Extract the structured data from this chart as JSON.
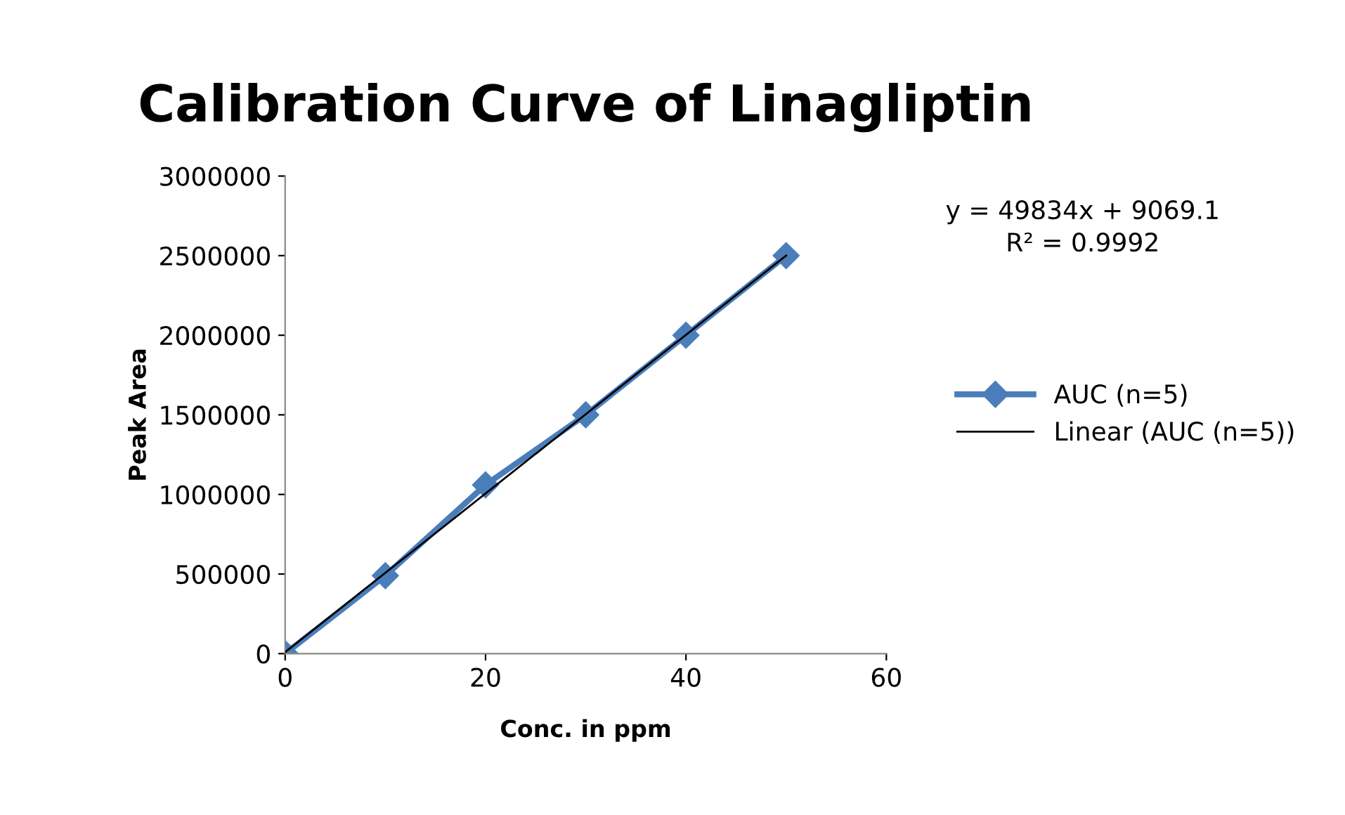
{
  "chart_data": {
    "type": "line",
    "title": "Calibration Curve of Linagliptin",
    "xlabel": "Conc. in ppm",
    "ylabel": "Peak Area",
    "x": [
      0,
      10,
      20,
      30,
      40,
      50
    ],
    "series": [
      {
        "name": "AUC (n=5)",
        "color": "#4a7ebb",
        "values": [
          0,
          490000,
          1060000,
          1500000,
          2000000,
          2500000
        ],
        "marker": "diamond"
      },
      {
        "name": "Linear (AUC (n=5))",
        "color": "#000000",
        "type": "line",
        "x": [
          0,
          50
        ],
        "values": [
          9069.1,
          2500769.1
        ],
        "marker": "none"
      }
    ],
    "xlim": [
      0,
      60
    ],
    "xticks": [
      0,
      20,
      40,
      60
    ],
    "ylim": [
      0,
      3000000
    ],
    "yticks": [
      0,
      500000,
      1000000,
      1500000,
      2000000,
      2500000,
      3000000
    ],
    "grid": false,
    "legend": "right",
    "line_style": "solid",
    "annotations": [
      "y = 49834x + 9069.1\nR² = 0.9992"
    ]
  }
}
